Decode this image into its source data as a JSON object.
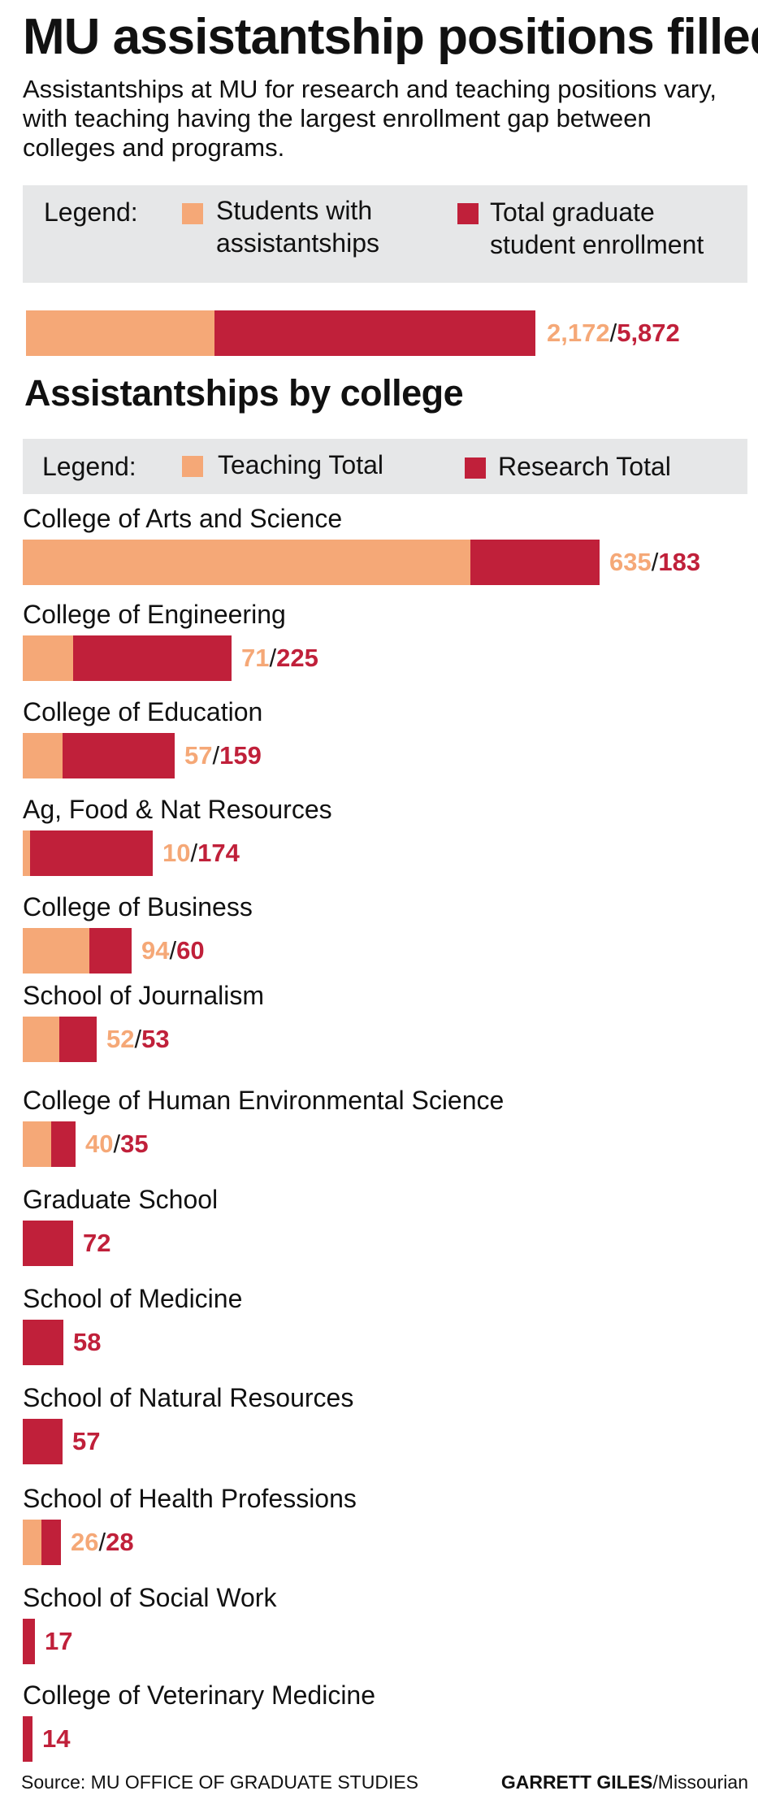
{
  "title": "MU assistantship positions filled",
  "subtitle": "Assistantships at MU for research and teaching positions vary, with teaching having the largest enrollment gap between colleges and programs.",
  "colors": {
    "orange": "#f5a877",
    "red": "#c0203a",
    "legend_bg": "#e6e7e8"
  },
  "legend_top": {
    "label": "Legend:",
    "item1_line1": "Students with",
    "item1_line2": "assistantships",
    "item2_line1": "Total graduate",
    "item2_line2": "student enrollment"
  },
  "legend_college": {
    "label": "Legend:",
    "item1": "Teaching Total",
    "item2": "Research Total"
  },
  "section_title": "Assistantships by college",
  "footer": {
    "source": "Source: MU OFFICE OF GRADUATE STUDIES",
    "credit_name": "GARRETT GILES",
    "credit_org": "/Missourian"
  },
  "chart_data": [
    {
      "type": "bar",
      "orientation": "horizontal",
      "stacked": true,
      "series": [
        {
          "name": "Students with assistantships",
          "values": [
            2172
          ],
          "labels": [
            "2,172"
          ]
        },
        {
          "name": "Total graduate student enrollment",
          "values": [
            5872
          ],
          "labels": [
            "5,872"
          ]
        }
      ]
    },
    {
      "type": "bar",
      "orientation": "horizontal",
      "stacked": true,
      "title": "Assistantships by college",
      "categories": [
        "College of Arts and Science",
        "College of Engineering",
        "College of Education",
        "Ag, Food & Nat Resources",
        "College of Business",
        "School of Journalism",
        "College of Human Environmental Science",
        "Graduate School",
        "School of Medicine",
        "School of Natural Resources",
        "School of Health Professions",
        "School of Social Work",
        "College of Veterinary Medicine"
      ],
      "series": [
        {
          "name": "Teaching Total",
          "values": [
            635,
            71,
            57,
            10,
            94,
            52,
            40,
            0,
            0,
            0,
            26,
            0,
            0
          ]
        },
        {
          "name": "Research Total",
          "values": [
            183,
            225,
            159,
            174,
            60,
            53,
            35,
            72,
            58,
            57,
            28,
            17,
            14
          ]
        }
      ]
    }
  ]
}
